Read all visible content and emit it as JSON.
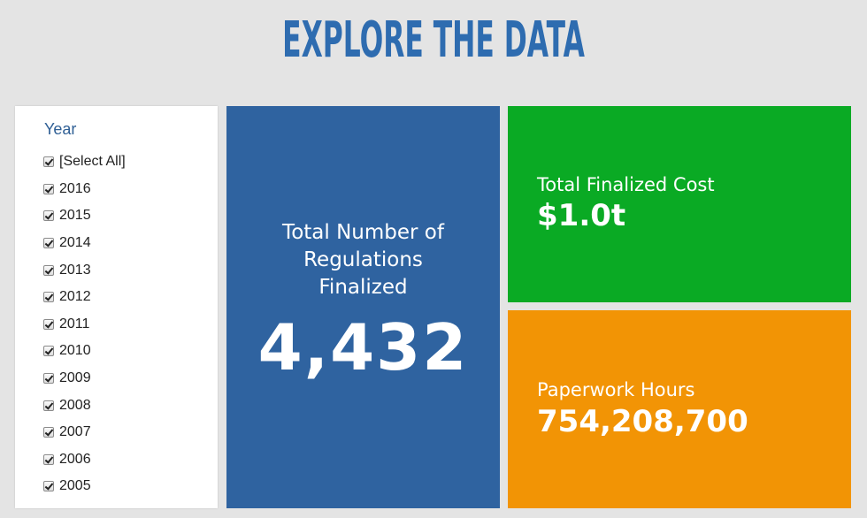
{
  "header": {
    "title": "EXPLORE THE DATA"
  },
  "filter": {
    "heading": "Year",
    "items": [
      {
        "label": "[Select All]",
        "checked": true
      },
      {
        "label": "2016",
        "checked": true
      },
      {
        "label": "2015",
        "checked": true
      },
      {
        "label": "2014",
        "checked": true
      },
      {
        "label": "2013",
        "checked": true
      },
      {
        "label": "2012",
        "checked": true
      },
      {
        "label": "2011",
        "checked": true
      },
      {
        "label": "2010",
        "checked": true
      },
      {
        "label": "2009",
        "checked": true
      },
      {
        "label": "2008",
        "checked": true
      },
      {
        "label": "2007",
        "checked": true
      },
      {
        "label": "2006",
        "checked": true
      },
      {
        "label": "2005",
        "checked": true
      }
    ]
  },
  "tiles": {
    "regulations": {
      "label": "Total Number of Regulations Finalized",
      "value": "4,432",
      "color": "#2f63a0"
    },
    "cost": {
      "label": "Total Finalized Cost",
      "value": "$1.0t",
      "color": "#0aaa24"
    },
    "hours": {
      "label": "Paperwork Hours",
      "value": "754,208,700",
      "color": "#f29405"
    }
  }
}
